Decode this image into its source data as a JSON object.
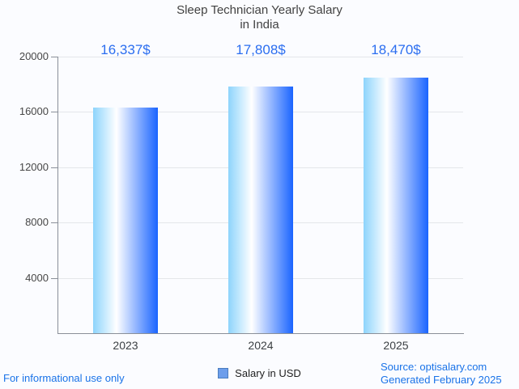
{
  "chart_data": {
    "type": "bar",
    "title": "Sleep Technician Yearly Salary in India",
    "title_lines": [
      "Sleep Technician Yearly Salary",
      "in India"
    ],
    "categories": [
      "2023",
      "2024",
      "2025"
    ],
    "series": [
      {
        "name": "Salary in USD",
        "values": [
          16337,
          17808,
          18470
        ]
      }
    ],
    "value_labels": [
      "16,337$",
      "17,808$",
      "18,470$"
    ],
    "xlabel": "",
    "ylabel": "",
    "ylim": [
      0,
      20000
    ],
    "yticks": [
      20000,
      16000,
      12000,
      8000,
      4000
    ],
    "grid": true,
    "legend_position": "bottom"
  },
  "legend": {
    "label": "Salary in USD"
  },
  "footer": {
    "left": "For informational use only",
    "source": "Source: optisalary.com",
    "generated": "Generated February 2025"
  },
  "colors": {
    "annotation_blue": "#2b6ef0",
    "footer_blue": "#1a73e8",
    "title_gray": "#424242",
    "axis_line": "#8a8f98",
    "gridline": "#e4e6ea",
    "bar_gradient": [
      "#8dd4fc",
      "#ffffff",
      "#1a64ff"
    ],
    "bar_gradient_white_stop": "36%",
    "legend_swatch_fill": "#6d9eeb",
    "legend_swatch_border": "#4a7dbe"
  }
}
